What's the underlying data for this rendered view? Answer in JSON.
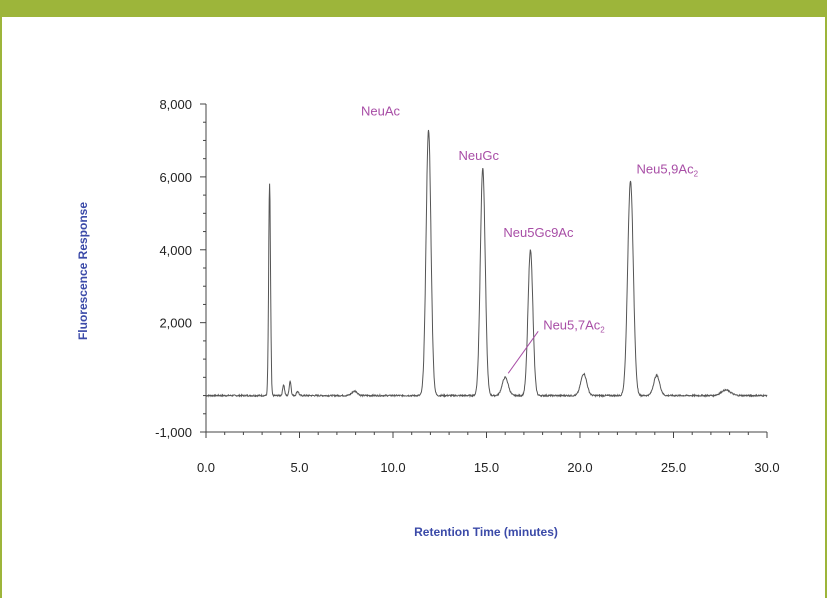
{
  "chart_data": {
    "type": "line",
    "xlabel": "Retention Time (minutes)",
    "ylabel": "Fluorescence Response",
    "xlim": [
      0,
      30
    ],
    "ylim": [
      -1000,
      8000
    ],
    "x_ticks": [
      "0.0",
      "5.0",
      "10.0",
      "15.0",
      "20.0",
      "25.0",
      "30.0"
    ],
    "y_ticks": [
      "-1,000",
      "2,000",
      "4,000",
      "6,000",
      "8,000"
    ],
    "y_tick_values": [
      -1000,
      2000,
      4000,
      6000,
      8000
    ],
    "x_tick_values": [
      0,
      5,
      10,
      15,
      20,
      25,
      30
    ],
    "baseline": 0,
    "series": [
      {
        "peaks": [
          {
            "t": 3.4,
            "h": 5800,
            "w": 0.05
          },
          {
            "t": 4.15,
            "h": 300,
            "w": 0.05
          },
          {
            "t": 4.5,
            "h": 400,
            "w": 0.05
          },
          {
            "t": 4.9,
            "h": 120,
            "w": 0.06
          },
          {
            "t": 7.95,
            "h": 120,
            "w": 0.15
          },
          {
            "t": 11.9,
            "h": 7300,
            "w": 0.13
          },
          {
            "t": 14.8,
            "h": 6250,
            "w": 0.13
          },
          {
            "t": 16.0,
            "h": 500,
            "w": 0.16
          },
          {
            "t": 17.35,
            "h": 4000,
            "w": 0.13
          },
          {
            "t": 20.2,
            "h": 600,
            "w": 0.16
          },
          {
            "t": 22.7,
            "h": 5900,
            "w": 0.15
          },
          {
            "t": 24.1,
            "h": 550,
            "w": 0.16
          },
          {
            "t": 27.8,
            "h": 150,
            "w": 0.25
          }
        ]
      }
    ],
    "annotations": [
      {
        "text": "NeuAc",
        "x": 11.9,
        "y": 7300
      },
      {
        "text": "NeuGc",
        "x": 14.8,
        "y": 6250
      },
      {
        "text": "Neu5Gc9Ac",
        "x": 17.35,
        "y": 4000
      },
      {
        "text": "Neu5,7Ac",
        "sub": "2",
        "x": 16.0,
        "y": 500
      },
      {
        "text": "Neu5,9Ac",
        "sub": "2",
        "x": 22.7,
        "y": 5900
      }
    ],
    "colors": {
      "trace": "#555555",
      "annotation": "#a84ea6",
      "axis_label": "#3b4aa8",
      "accent": "#9db53a"
    }
  }
}
